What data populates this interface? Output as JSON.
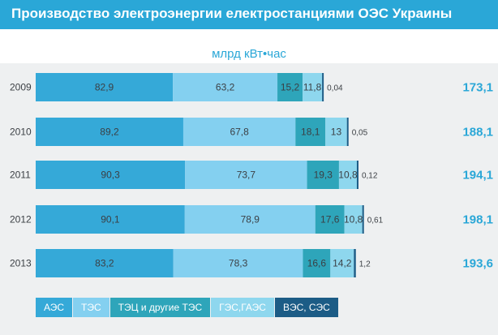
{
  "header": {
    "title": "Производство электроэнергии електростанциями ОЭС Украины",
    "unit": "млрд кВт•час"
  },
  "colors": {
    "header_bg": "#2aa7d7",
    "panel_bg": "#eef0f1",
    "aes": "#35a9d8",
    "tes": "#84d0f0",
    "tec": "#2ea5ba",
    "ges": "#8ed7ee",
    "ves": "#1c5c86",
    "total_text": "#2aa7d7",
    "value_text": "#3b3f44"
  },
  "chart_data": {
    "type": "bar",
    "orientation": "horizontal",
    "stacked": true,
    "categories": [
      "2009",
      "2010",
      "2011",
      "2012",
      "2013"
    ],
    "series": [
      {
        "name": "АЭС",
        "color": "#35a9d8",
        "values": [
          82.9,
          89.2,
          90.3,
          90.1,
          83.2
        ],
        "labels": [
          "82,9",
          "89,2",
          "90,3",
          "90,1",
          "83,2"
        ]
      },
      {
        "name": "ТЭС",
        "color": "#84d0f0",
        "values": [
          63.2,
          67.8,
          73.7,
          78.9,
          78.3
        ],
        "labels": [
          "63,2",
          "67,8",
          "73,7",
          "78,9",
          "78,3"
        ]
      },
      {
        "name": "ТЭЦ и другие ТЭС",
        "color": "#2ea5ba",
        "values": [
          15.2,
          18.1,
          19.3,
          17.6,
          16.6
        ],
        "labels": [
          "15,2",
          "18,1",
          "19,3",
          "17,6",
          "16,6"
        ]
      },
      {
        "name": "ГЭС, ГАЭС",
        "color": "#8ed7ee",
        "values": [
          11.8,
          13,
          10.8,
          10.8,
          14.2
        ],
        "labels": [
          "11,8",
          "13",
          "10,8",
          "10,8",
          "14,2"
        ]
      },
      {
        "name": "ВЭС, СЭС",
        "color": "#1c5c86",
        "values": [
          0.04,
          0.05,
          0.12,
          0.61,
          1.2
        ],
        "labels": [
          "0,04",
          "0,05",
          "0,12",
          "0,61",
          "1,2"
        ]
      }
    ],
    "totals": [
      "173,1",
      "188,1",
      "194,1",
      "198,1",
      "193,6"
    ],
    "xlim": [
      0,
      200
    ],
    "grid": false,
    "legend_position": "bottom-left"
  },
  "legend": [
    {
      "label": "АЭС",
      "color": "#35a9d8"
    },
    {
      "label": "ТЭС",
      "color": "#84d0f0"
    },
    {
      "label": "ТЭЦ и другие ТЭС",
      "color": "#2ea5ba"
    },
    {
      "label": "ГЭС,ГАЭС",
      "color": "#8ed7ee"
    },
    {
      "label": "ВЭС, СЭС",
      "color": "#1c5c86"
    }
  ]
}
